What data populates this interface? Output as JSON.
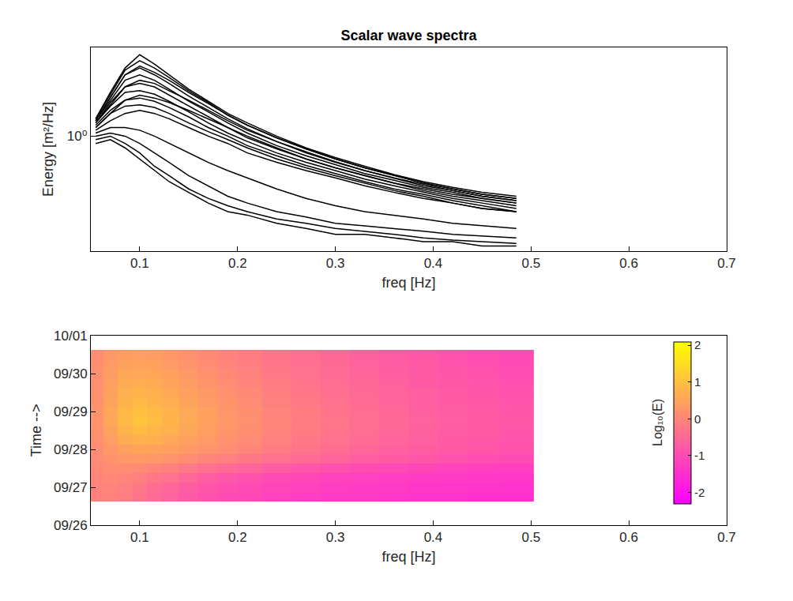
{
  "chart_data": [
    {
      "type": "line",
      "title": "Scalar wave spectra",
      "x_label": "freq [Hz]",
      "y_label": "Energy [m²/Hz]",
      "color": "#000000",
      "log": "y",
      "grid": false,
      "xlim": [
        0.05,
        0.7
      ],
      "xticks": [
        0.1,
        0.2,
        0.3,
        0.4,
        0.5,
        0.6,
        0.7
      ],
      "ylim": [
        0.03,
        15
      ],
      "yticks": [
        {
          "value": 1,
          "label": "10⁰"
        }
      ],
      "x": [
        0.055,
        0.07,
        0.085,
        0.1,
        0.115,
        0.13,
        0.15,
        0.17,
        0.19,
        0.21,
        0.24,
        0.27,
        0.3,
        0.33,
        0.36,
        0.39,
        0.42,
        0.45,
        0.485
      ],
      "values": [
        [
          0.8,
          0.9,
          0.7,
          0.5,
          0.35,
          0.25,
          0.18,
          0.13,
          0.1,
          0.09,
          0.07,
          0.06,
          0.05,
          0.05,
          0.045,
          0.04,
          0.04,
          0.035,
          0.035
        ],
        [
          0.9,
          1.0,
          0.8,
          0.6,
          0.4,
          0.3,
          0.2,
          0.15,
          0.12,
          0.1,
          0.08,
          0.07,
          0.06,
          0.055,
          0.05,
          0.045,
          0.042,
          0.04,
          0.038
        ],
        [
          1.0,
          1.1,
          1.0,
          0.8,
          0.6,
          0.45,
          0.3,
          0.22,
          0.16,
          0.13,
          0.1,
          0.085,
          0.07,
          0.065,
          0.06,
          0.055,
          0.05,
          0.048,
          0.045
        ],
        [
          1.1,
          1.3,
          1.3,
          1.2,
          1.0,
          0.8,
          0.6,
          0.45,
          0.35,
          0.28,
          0.2,
          0.15,
          0.12,
          0.1,
          0.09,
          0.08,
          0.07,
          0.065,
          0.06
        ],
        [
          1.2,
          1.6,
          2.0,
          2.2,
          2.0,
          1.7,
          1.3,
          1.0,
          0.8,
          0.6,
          0.45,
          0.35,
          0.28,
          0.22,
          0.18,
          0.15,
          0.13,
          0.11,
          0.1
        ],
        [
          1.3,
          2.0,
          3.0,
          3.5,
          3.2,
          2.8,
          2.2,
          1.7,
          1.3,
          1.0,
          0.7,
          0.5,
          0.38,
          0.3,
          0.24,
          0.2,
          0.17,
          0.15,
          0.13
        ],
        [
          1.5,
          2.6,
          4.5,
          5.5,
          5.0,
          4.0,
          3.0,
          2.2,
          1.6,
          1.2,
          0.85,
          0.6,
          0.45,
          0.35,
          0.28,
          0.23,
          0.19,
          0.16,
          0.14
        ],
        [
          1.6,
          3.2,
          6.5,
          8.5,
          7.0,
          5.5,
          3.8,
          2.7,
          1.9,
          1.4,
          0.95,
          0.68,
          0.5,
          0.38,
          0.3,
          0.24,
          0.2,
          0.17,
          0.15
        ],
        [
          1.7,
          3.8,
          8.0,
          12.0,
          9.0,
          6.5,
          4.2,
          2.9,
          2.0,
          1.5,
          1.0,
          0.7,
          0.52,
          0.4,
          0.31,
          0.25,
          0.21,
          0.18,
          0.16
        ],
        [
          1.7,
          3.6,
          7.5,
          10.0,
          8.0,
          6.0,
          4.0,
          2.8,
          1.9,
          1.4,
          0.95,
          0.68,
          0.5,
          0.38,
          0.3,
          0.24,
          0.2,
          0.17,
          0.15
        ],
        [
          1.6,
          3.3,
          6.5,
          8.0,
          6.5,
          5.0,
          3.4,
          2.4,
          1.7,
          1.25,
          0.85,
          0.62,
          0.46,
          0.35,
          0.28,
          0.22,
          0.19,
          0.16,
          0.14
        ],
        [
          1.6,
          3.0,
          5.5,
          6.5,
          5.5,
          4.2,
          2.9,
          2.1,
          1.5,
          1.1,
          0.75,
          0.55,
          0.42,
          0.32,
          0.26,
          0.21,
          0.18,
          0.15,
          0.13
        ],
        [
          1.5,
          2.8,
          4.5,
          5.0,
          4.5,
          3.5,
          2.5,
          1.8,
          1.3,
          0.95,
          0.68,
          0.5,
          0.38,
          0.3,
          0.24,
          0.19,
          0.16,
          0.14,
          0.12
        ],
        [
          1.5,
          2.5,
          3.8,
          4.0,
          3.6,
          2.9,
          2.1,
          1.5,
          1.1,
          0.85,
          0.6,
          0.45,
          0.35,
          0.27,
          0.22,
          0.18,
          0.15,
          0.13,
          0.11
        ],
        [
          1.4,
          2.2,
          3.0,
          3.2,
          2.9,
          2.4,
          1.8,
          1.3,
          1.0,
          0.75,
          0.55,
          0.41,
          0.32,
          0.25,
          0.2,
          0.17,
          0.14,
          0.12,
          0.1
        ],
        [
          1.3,
          2.0,
          2.5,
          2.6,
          2.4,
          2.0,
          1.5,
          1.15,
          0.9,
          0.7,
          0.5,
          0.38,
          0.3,
          0.24,
          0.19,
          0.16,
          0.13,
          0.11,
          0.1
        ]
      ]
    },
    {
      "type": "heatmap",
      "x_label": "freq [Hz]",
      "y_label": "Time -->",
      "colorbar_label": "Log₁₀(E)",
      "log": true,
      "grid": false,
      "xlim": [
        0.05,
        0.7
      ],
      "xticks": [
        0.1,
        0.2,
        0.3,
        0.4,
        0.5,
        0.6,
        0.7
      ],
      "ylim": [
        26,
        31
      ],
      "yticks": [
        {
          "value": 26,
          "label": "09/26"
        },
        {
          "value": 27,
          "label": "09/27"
        },
        {
          "value": 28,
          "label": "09/28"
        },
        {
          "value": 29,
          "label": "09/29"
        },
        {
          "value": 30,
          "label": "09/30"
        },
        {
          "value": 31,
          "label": "10/01"
        }
      ],
      "zlim": [
        -2.3,
        2.1
      ],
      "zticks": [
        -2,
        -1,
        0,
        1,
        2
      ],
      "x": [
        0.055,
        0.07,
        0.085,
        0.1,
        0.115,
        0.13,
        0.15,
        0.17,
        0.19,
        0.21,
        0.24,
        0.27,
        0.3,
        0.33,
        0.36,
        0.39,
        0.42,
        0.45,
        0.485
      ],
      "y": [
        26.75,
        27.0,
        27.25,
        27.5,
        27.75,
        28.0,
        28.25,
        28.5,
        28.75,
        29.0,
        29.25,
        29.5,
        29.75,
        30.0,
        30.25,
        30.5
      ],
      "values": [
        [
          0.8,
          0.9,
          0.7,
          0.5,
          0.35,
          0.25,
          0.18,
          0.13,
          0.1,
          0.09,
          0.07,
          0.06,
          0.05,
          0.05,
          0.045,
          0.04,
          0.04,
          0.035,
          0.035
        ],
        [
          0.9,
          1.0,
          0.8,
          0.6,
          0.4,
          0.3,
          0.2,
          0.15,
          0.12,
          0.1,
          0.08,
          0.07,
          0.06,
          0.055,
          0.05,
          0.045,
          0.042,
          0.04,
          0.038
        ],
        [
          1.0,
          1.1,
          1.0,
          0.8,
          0.6,
          0.45,
          0.3,
          0.22,
          0.16,
          0.13,
          0.1,
          0.085,
          0.07,
          0.065,
          0.06,
          0.055,
          0.05,
          0.048,
          0.045
        ],
        [
          1.1,
          1.3,
          1.3,
          1.2,
          1.0,
          0.8,
          0.6,
          0.45,
          0.35,
          0.28,
          0.2,
          0.15,
          0.12,
          0.1,
          0.09,
          0.08,
          0.07,
          0.065,
          0.06
        ],
        [
          1.2,
          1.6,
          2.0,
          2.2,
          2.0,
          1.7,
          1.3,
          1.0,
          0.8,
          0.6,
          0.45,
          0.35,
          0.28,
          0.22,
          0.18,
          0.15,
          0.13,
          0.11,
          0.1
        ],
        [
          1.3,
          2.0,
          3.0,
          3.5,
          3.2,
          2.8,
          2.2,
          1.7,
          1.3,
          1.0,
          0.7,
          0.5,
          0.38,
          0.3,
          0.24,
          0.2,
          0.17,
          0.15,
          0.13
        ],
        [
          1.5,
          2.6,
          4.5,
          5.5,
          5.0,
          4.0,
          3.0,
          2.2,
          1.6,
          1.2,
          0.85,
          0.6,
          0.45,
          0.35,
          0.28,
          0.23,
          0.19,
          0.16,
          0.14
        ],
        [
          1.6,
          3.2,
          6.5,
          8.5,
          7.0,
          5.5,
          3.8,
          2.7,
          1.9,
          1.4,
          0.95,
          0.68,
          0.5,
          0.38,
          0.3,
          0.24,
          0.2,
          0.17,
          0.15
        ],
        [
          1.7,
          3.8,
          8.0,
          12.0,
          9.0,
          6.5,
          4.2,
          2.9,
          2.0,
          1.5,
          1.0,
          0.7,
          0.52,
          0.4,
          0.31,
          0.25,
          0.21,
          0.18,
          0.16
        ],
        [
          1.7,
          3.6,
          7.5,
          10.0,
          8.0,
          6.0,
          4.0,
          2.8,
          1.9,
          1.4,
          0.95,
          0.68,
          0.5,
          0.38,
          0.3,
          0.24,
          0.2,
          0.17,
          0.15
        ],
        [
          1.6,
          3.3,
          6.5,
          8.0,
          6.5,
          5.0,
          3.4,
          2.4,
          1.7,
          1.25,
          0.85,
          0.62,
          0.46,
          0.35,
          0.28,
          0.22,
          0.19,
          0.16,
          0.14
        ],
        [
          1.6,
          3.0,
          5.5,
          6.5,
          5.5,
          4.2,
          2.9,
          2.1,
          1.5,
          1.1,
          0.75,
          0.55,
          0.42,
          0.32,
          0.26,
          0.21,
          0.18,
          0.15,
          0.13
        ],
        [
          1.5,
          2.8,
          4.5,
          5.0,
          4.5,
          3.5,
          2.5,
          1.8,
          1.3,
          0.95,
          0.68,
          0.5,
          0.38,
          0.3,
          0.24,
          0.19,
          0.16,
          0.14,
          0.12
        ],
        [
          1.5,
          2.5,
          3.8,
          4.0,
          3.6,
          2.9,
          2.1,
          1.5,
          1.1,
          0.85,
          0.6,
          0.45,
          0.35,
          0.27,
          0.22,
          0.18,
          0.15,
          0.13,
          0.11
        ],
        [
          1.4,
          2.2,
          3.0,
          3.2,
          2.9,
          2.4,
          1.8,
          1.3,
          1.0,
          0.75,
          0.55,
          0.41,
          0.32,
          0.25,
          0.2,
          0.17,
          0.14,
          0.12,
          0.1
        ],
        [
          1.3,
          2.0,
          2.5,
          2.6,
          2.4,
          2.0,
          1.5,
          1.15,
          0.9,
          0.7,
          0.5,
          0.38,
          0.3,
          0.24,
          0.19,
          0.16,
          0.13,
          0.11,
          0.1
        ]
      ]
    }
  ]
}
